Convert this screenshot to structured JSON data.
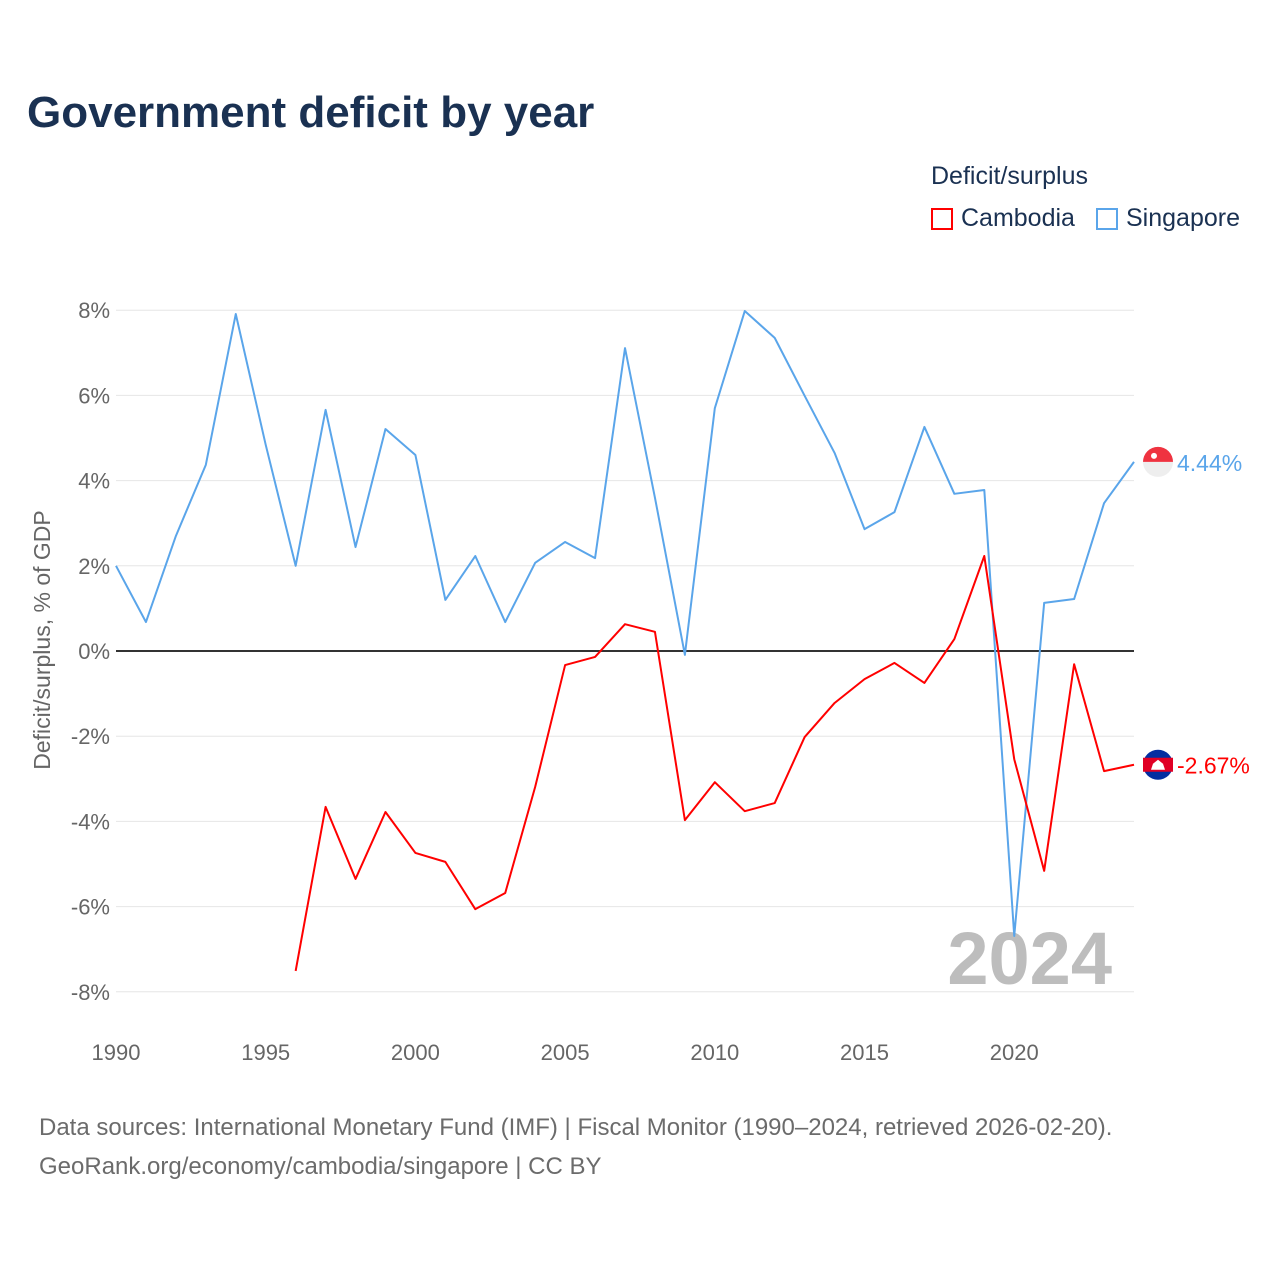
{
  "title": "Government deficit by year",
  "legend": {
    "title": "Deficit/surplus",
    "items": [
      {
        "label": "Cambodia",
        "color": "#ff0000"
      },
      {
        "label": "Singapore",
        "color": "#5aa5ea"
      }
    ]
  },
  "source": {
    "line1": "Data sources: International Monetary Fund (IMF) | Fiscal Monitor (1990–2024, retrieved 2026-02-20).",
    "line2": "GeoRank.org/economy/cambodia/singapore | CC BY"
  },
  "chart_data": {
    "type": "line",
    "title": "Government deficit by year",
    "xlabel": "",
    "ylabel": "Deficit/surplus, % of GDP",
    "xlim": [
      1990,
      2024
    ],
    "ylim": [
      -8,
      8
    ],
    "x_ticks": [
      "1990",
      "1995",
      "2000",
      "2005",
      "2010",
      "2015",
      "2020"
    ],
    "y_ticks": [
      "8%",
      "6%",
      "4%",
      "2%",
      "0%",
      "-2%",
      "-4%",
      "-6%",
      "-8%"
    ],
    "year_label": "2024",
    "series": [
      {
        "name": "Singapore",
        "color": "#5aa5ea",
        "end_label": "4.44%",
        "start": 1990,
        "values": [
          2.0,
          0.68,
          2.7,
          4.37,
          7.91,
          4.84,
          2.0,
          5.66,
          2.44,
          5.21,
          4.6,
          1.2,
          2.23,
          0.68,
          2.07,
          2.56,
          2.18,
          7.11,
          3.6,
          -0.09,
          5.7,
          7.98,
          7.35,
          5.99,
          4.65,
          2.86,
          3.26,
          5.26,
          3.69,
          3.78,
          -6.69,
          1.13,
          1.22,
          3.47,
          4.44
        ]
      },
      {
        "name": "Cambodia",
        "color": "#ff0000",
        "end_label": "-2.67%",
        "start": 1996,
        "values": [
          -7.51,
          -3.66,
          -5.35,
          -3.78,
          -4.74,
          -4.95,
          -6.06,
          -5.68,
          -3.19,
          -0.33,
          -0.14,
          0.63,
          0.45,
          -3.97,
          -3.08,
          -3.76,
          -3.57,
          -2.02,
          -1.22,
          -0.66,
          -0.28,
          -0.75,
          0.28,
          2.23,
          -2.54,
          -5.16,
          -0.31,
          -2.82,
          -2.67
        ]
      }
    ]
  }
}
